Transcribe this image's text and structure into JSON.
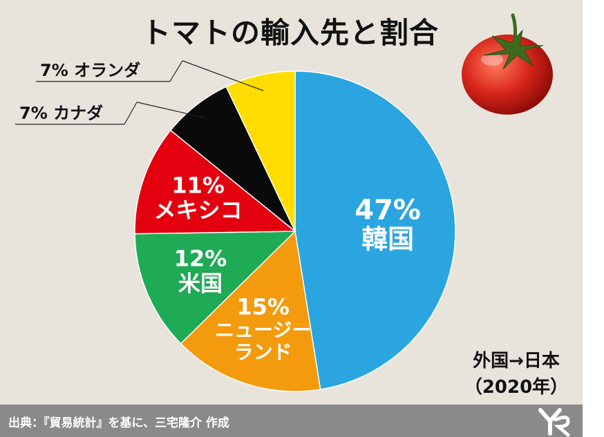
{
  "title": "トマトの輸入先と割合",
  "source": "出典：『貿易統計』を基に、三宅隆介 作成",
  "note_line1": "外国→日本",
  "note_line2": "（2020年）",
  "chart_data": {
    "type": "pie",
    "title": "トマトの輸入先と割合",
    "slices": [
      {
        "name": "韓国",
        "value": 47,
        "label": "47%",
        "color": "#2aa5df"
      },
      {
        "name": "ニュージーランド",
        "name_lines": [
          "ニュージー",
          "ランド"
        ],
        "value": 15,
        "label": "15%",
        "color": "#f39a0d"
      },
      {
        "name": "米国",
        "value": 12,
        "label": "12%",
        "color": "#1faa55"
      },
      {
        "name": "メキシコ",
        "value": 11,
        "label": "11%",
        "color": "#e3000f"
      },
      {
        "name": "カナダ",
        "value": 7,
        "label": "7%",
        "color": "#0a0a0a"
      },
      {
        "name": "オランダ",
        "value": 7,
        "label": "7%",
        "color": "#ffdd00"
      }
    ],
    "external_labels": [
      {
        "text": "7% カナダ",
        "slice": "カナダ"
      },
      {
        "text": "7% オランダ",
        "slice": "オランダ"
      }
    ]
  }
}
